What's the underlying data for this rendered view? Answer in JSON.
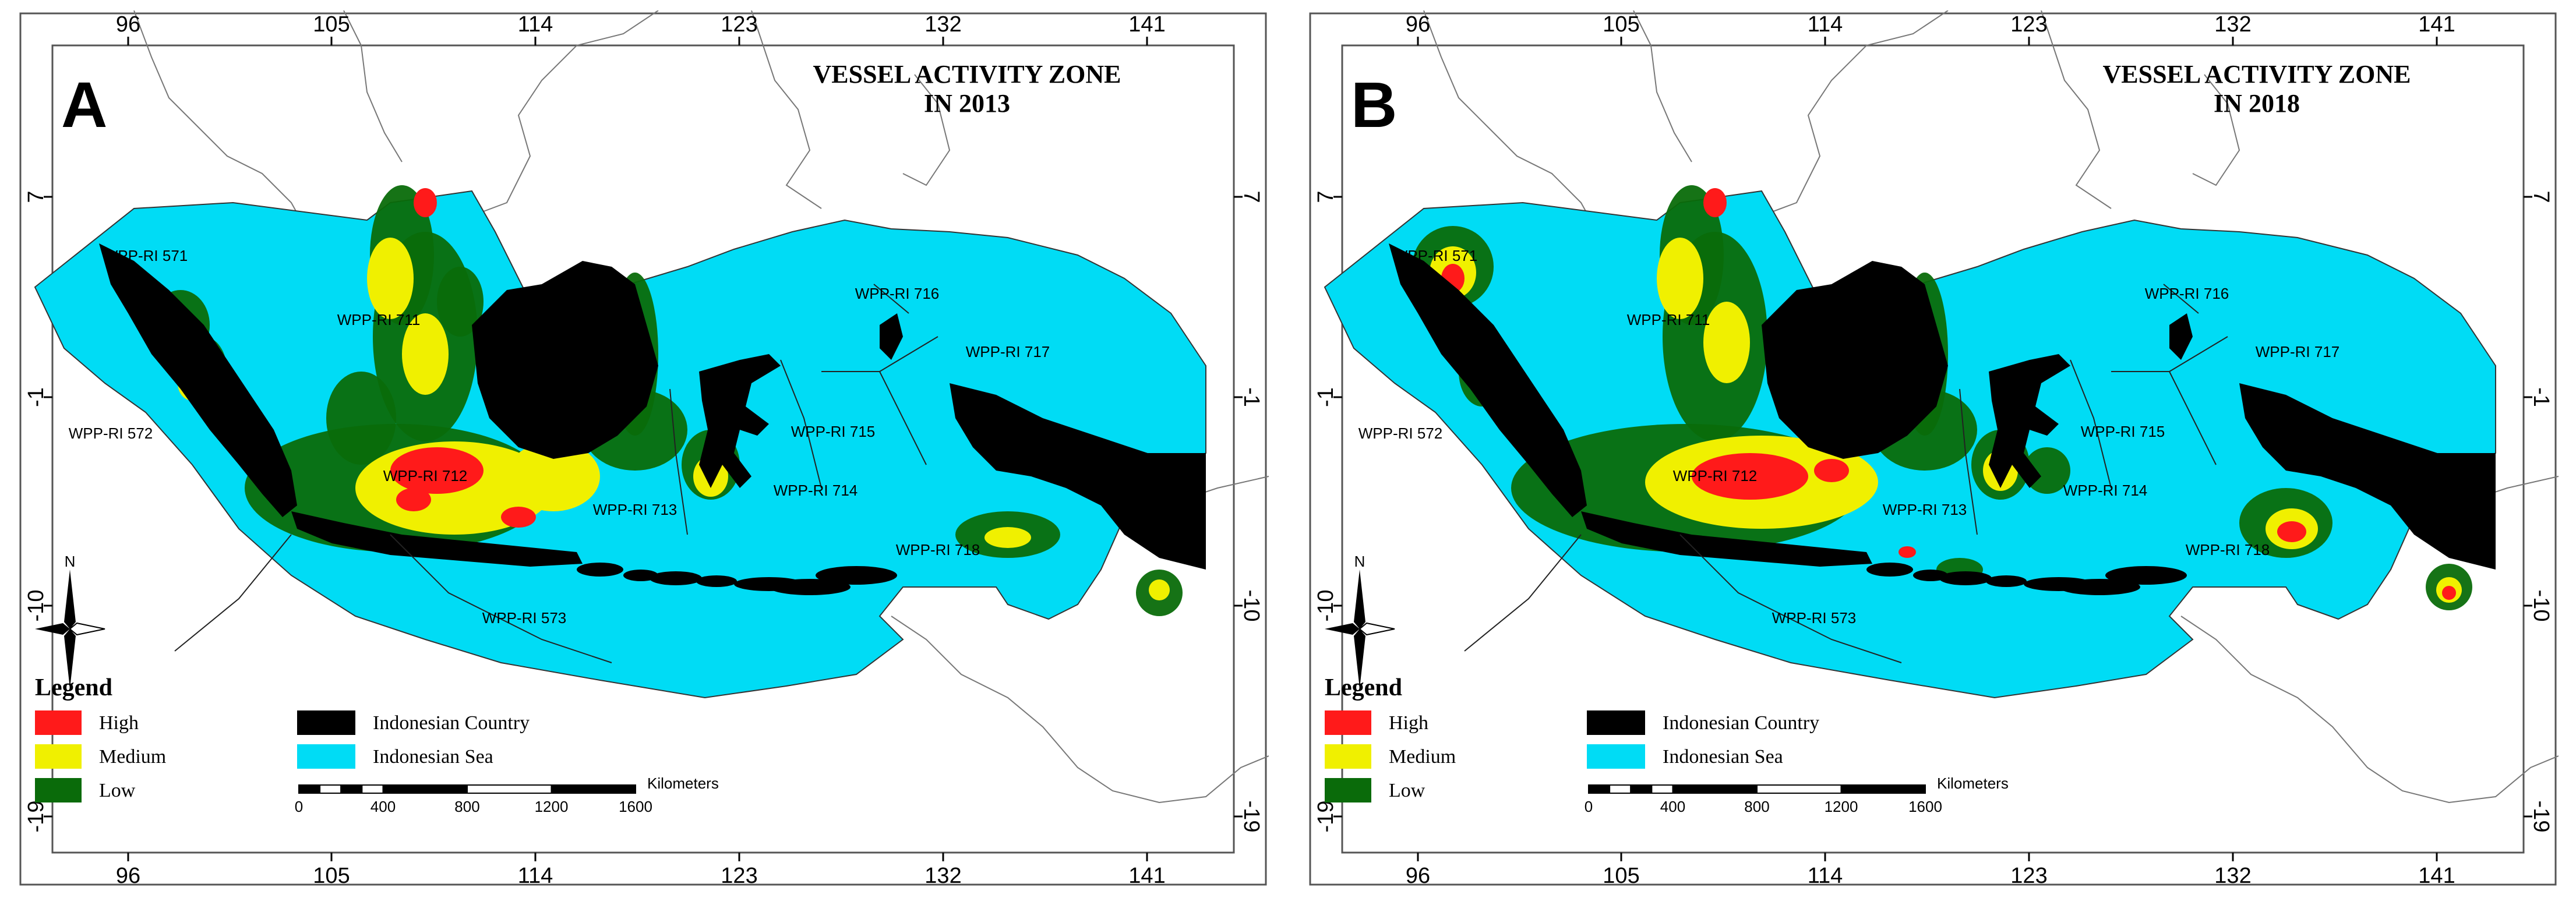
{
  "panels": [
    {
      "letter": "A",
      "title_line1": "VESSEL ACTIVITY ZONE",
      "title_line2": "IN 2013",
      "year": 2013,
      "zones": [
        {
          "label": "WPP-RI 571"
        },
        {
          "label": "WPP-RI 711"
        },
        {
          "label": "WPP-RI 572"
        },
        {
          "label": "WPP-RI 712"
        },
        {
          "label": "WPP-RI 713"
        },
        {
          "label": "WPP-RI 714"
        },
        {
          "label": "WPP-RI 715"
        },
        {
          "label": "WPP-RI 716"
        },
        {
          "label": "WPP-RI 717"
        },
        {
          "label": "WPP-RI 718"
        },
        {
          "label": "WPP-RI 573"
        }
      ]
    },
    {
      "letter": "B",
      "title_line1": "VESSEL ACTIVITY ZONE",
      "title_line2": "IN 2018",
      "year": 2018,
      "zones": [
        {
          "label": "WPP-RI 571"
        },
        {
          "label": "WPP-RI 711"
        },
        {
          "label": "WPP-RI 572"
        },
        {
          "label": "WPP-RI 712"
        },
        {
          "label": "WPP-RI 713"
        },
        {
          "label": "WPP-RI 714"
        },
        {
          "label": "WPP-RI 715"
        },
        {
          "label": "WPP-RI 716"
        },
        {
          "label": "WPP-RI 717"
        },
        {
          "label": "WPP-RI 718"
        },
        {
          "label": "WPP-RI 573"
        }
      ]
    }
  ],
  "axes": {
    "longitude_ticks": [
      "96",
      "105",
      "114",
      "123",
      "132",
      "141"
    ],
    "latitude_ticks": [
      "7",
      "-1",
      "-10",
      "-19"
    ]
  },
  "legend": {
    "title": "Legend",
    "activity": [
      {
        "label": "High",
        "color": "#ff1a1a"
      },
      {
        "label": "Medium",
        "color": "#f0f000"
      },
      {
        "label": "Low",
        "color": "#0a6b0a"
      }
    ],
    "area": [
      {
        "label": "Indonesian Country",
        "color": "#000000"
      },
      {
        "label": "Indonesian Sea",
        "color": "#00dcf5"
      }
    ]
  },
  "scale_bar": {
    "unit": "Kilometers",
    "labels": [
      "0",
      "400",
      "800",
      "1200",
      "1600"
    ]
  },
  "north_arrow": {
    "label": "N"
  },
  "colors": {
    "sea": "#00dcf5",
    "land_indonesia": "#000000",
    "high": "#ff1a1a",
    "medium": "#f0f000",
    "low": "#0a6b0a"
  }
}
